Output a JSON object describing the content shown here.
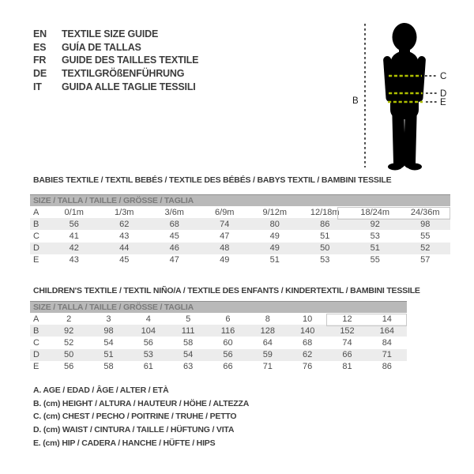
{
  "language_guide": {
    "items": [
      {
        "code": "EN",
        "text": "TEXTILE SIZE GUIDE"
      },
      {
        "code": "ES",
        "text": "GUÍA DE TALLAS"
      },
      {
        "code": "FR",
        "text": "GUIDE DES TAILLES TEXTILE"
      },
      {
        "code": "DE",
        "text": "TEXTILGRÖßENFÜHRUNG"
      },
      {
        "code": "IT",
        "text": "GUIDA ALLE TAGLIE TESSILI"
      }
    ]
  },
  "figure": {
    "labels": {
      "height": "B",
      "chest": "C",
      "waist": "D",
      "hip": "E"
    },
    "colors": {
      "silhouette": "#000000",
      "measure_dash": "#aebf00",
      "guide_dash": "#4d4d4d"
    }
  },
  "babies_table": {
    "title": "BABIES TEXTILE / TEXTIL BEBÉS / TEXTILE DES BÉBÉS / BABYS TEXTIL / BAMBINI TESSILE",
    "header": "SIZE / TALLA / TAILLE / GRÖSSE / TAGLIA",
    "rows": [
      {
        "label": "A",
        "values": [
          "0/1m",
          "1/3m",
          "3/6m",
          "6/9m",
          "9/12m",
          "12/18m",
          "18/24m",
          "24/36m"
        ]
      },
      {
        "label": "B",
        "values": [
          "56",
          "62",
          "68",
          "74",
          "80",
          "86",
          "92",
          "98"
        ]
      },
      {
        "label": "C",
        "values": [
          "41",
          "43",
          "45",
          "47",
          "49",
          "51",
          "53",
          "55"
        ]
      },
      {
        "label": "D",
        "values": [
          "42",
          "44",
          "46",
          "48",
          "49",
          "50",
          "51",
          "52"
        ]
      },
      {
        "label": "E",
        "values": [
          "43",
          "45",
          "47",
          "49",
          "51",
          "53",
          "55",
          "57"
        ]
      }
    ]
  },
  "children_table": {
    "title": "CHILDREN'S TEXTILE / TEXTIL NIÑO/A / TEXTILE DES ENFANTS / KINDERTEXTIL / BAMBINI TESSILE",
    "header": "SIZE / TALLA / TAILLE / GRÖSSE / TAGLIA",
    "rows": [
      {
        "label": "A",
        "values": [
          "2",
          "3",
          "4",
          "5",
          "6",
          "8",
          "10",
          "12",
          "14"
        ]
      },
      {
        "label": "B",
        "values": [
          "92",
          "98",
          "104",
          "111",
          "116",
          "128",
          "140",
          "152",
          "164"
        ]
      },
      {
        "label": "C",
        "values": [
          "52",
          "54",
          "56",
          "58",
          "60",
          "64",
          "68",
          "74",
          "84"
        ]
      },
      {
        "label": "D",
        "values": [
          "50",
          "51",
          "53",
          "54",
          "56",
          "59",
          "62",
          "66",
          "71"
        ]
      },
      {
        "label": "E",
        "values": [
          "56",
          "58",
          "61",
          "63",
          "66",
          "71",
          "76",
          "81",
          "86"
        ]
      }
    ]
  },
  "legend": {
    "items": [
      "A. AGE / EDAD / ÂGE / ALTER / ETÀ",
      "B. (cm) HEIGHT / ALTURA / HAUTEUR / HÖHE / ALTEZZA",
      "C. (cm) CHEST / PECHO / POITRINE / TRUHE / PETTO",
      "D. (cm) WAIST / CINTURA / TAILLE / HÜFTUNG / VITA",
      "E. (cm) HIP / CADERA / HANCHE / HÜFTE / HIPS"
    ]
  },
  "colors": {
    "header_band": "#b9b9b9",
    "header_band_text": "#7b7b7b",
    "row_stripe": "#ececec",
    "table_text": "#4c4c4c",
    "title_text": "#3b3b3b"
  }
}
